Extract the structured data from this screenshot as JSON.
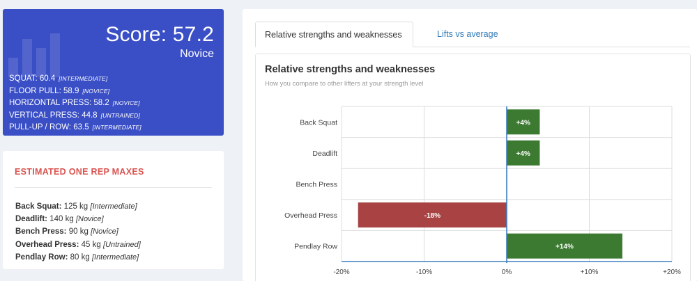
{
  "score_card": {
    "title": "Score: 57.2",
    "level": "Novice",
    "lifts": [
      {
        "name": "SQUAT: 60.4",
        "level": "[INTERMEDIATE]"
      },
      {
        "name": "FLOOR PULL: 58.9",
        "level": "[NOVICE]"
      },
      {
        "name": "HORIZONTAL PRESS: 58.2",
        "level": "[NOVICE]"
      },
      {
        "name": "VERTICAL PRESS: 44.8",
        "level": "[UNTRAINED]"
      },
      {
        "name": "PULL-UP / ROW: 63.5",
        "level": "[INTERMEDIATE]"
      }
    ]
  },
  "orm": {
    "title": "ESTIMATED ONE REP MAXES",
    "items": [
      {
        "lift": "Back Squat:",
        "value": "125 kg",
        "level": "[Intermediate]"
      },
      {
        "lift": "Deadlift:",
        "value": "140 kg",
        "level": "[Novice]"
      },
      {
        "lift": "Bench Press:",
        "value": "90 kg",
        "level": "[Novice]"
      },
      {
        "lift": "Overhead Press:",
        "value": "45 kg",
        "level": "[Untrained]"
      },
      {
        "lift": "Pendlay Row:",
        "value": "80 kg",
        "level": "[Intermediate]"
      }
    ]
  },
  "tabs": [
    {
      "label": "Relative strengths and weaknesses",
      "active": true
    },
    {
      "label": "Lifts vs average",
      "active": false
    }
  ],
  "colors": {
    "positive": "#3c7a32",
    "negative": "#a94343",
    "axis": "#3d7ebf",
    "grid": "#dddddd"
  },
  "chart_data": {
    "type": "bar",
    "orientation": "horizontal",
    "title": "Relative strengths and weaknesses",
    "subtitle": "How you compare to other lifters at your strength level",
    "categories": [
      "Back Squat",
      "Deadlift",
      "Bench Press",
      "Overhead Press",
      "Pendlay Row"
    ],
    "values": [
      4,
      4,
      0,
      -18,
      14
    ],
    "data_labels": [
      "+4%",
      "+4%",
      "",
      "-18%",
      "+14%"
    ],
    "xlim": [
      -20,
      20
    ],
    "x_ticks": [
      -20,
      -10,
      0,
      10,
      20
    ],
    "x_tick_labels": [
      "-20%",
      "-10%",
      "0%",
      "+10%",
      "+20%"
    ],
    "grid": true
  }
}
